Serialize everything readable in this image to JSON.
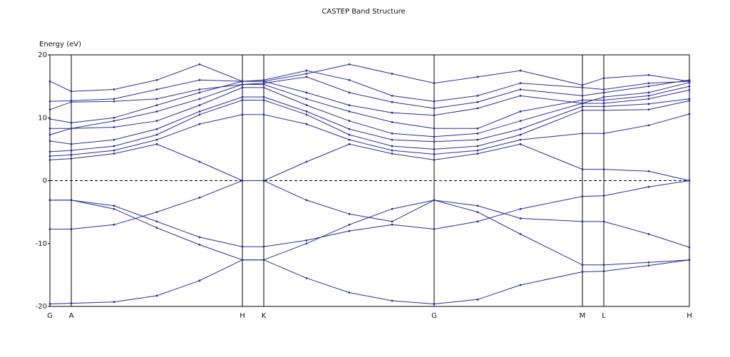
{
  "chart_data": {
    "type": "line",
    "title": "CASTEP Band Structure",
    "y_label": "Energy (eV)",
    "color": "#2b2b9e",
    "fermi_level": 0,
    "x": [
      0,
      30,
      90,
      150,
      210,
      270,
      300,
      360,
      420,
      480,
      539,
      600,
      660,
      747,
      777,
      840,
      897
    ],
    "xlim": [
      0,
      897
    ],
    "xticks": [
      {
        "value": 0,
        "label": "G"
      },
      {
        "value": 30,
        "label": "A"
      },
      {
        "value": 270,
        "label": "H"
      },
      {
        "value": 300,
        "label": "K"
      },
      {
        "value": 539,
        "label": "G"
      },
      {
        "value": 747,
        "label": "M"
      },
      {
        "value": 777,
        "label": "L"
      },
      {
        "value": 897,
        "label": "H"
      }
    ],
    "ylim": [
      -20,
      20
    ],
    "yticks": [
      20,
      10,
      0,
      -10,
      -20
    ],
    "series": [
      {
        "values": [
          -19.6,
          -19.5,
          -19.3,
          -18.3,
          -15.9,
          -12.6,
          -12.6,
          -15.5,
          -17.8,
          -19.1,
          -19.6,
          -18.9,
          -16.6,
          -14.5,
          -14.4,
          -13.5,
          -12.6
        ]
      },
      {
        "values": [
          -3.1,
          -3.1,
          -4.5,
          -7.5,
          -10.2,
          -12.6,
          -12.6,
          -10.0,
          -7.0,
          -4.5,
          -3.1,
          -5.0,
          -8.5,
          -13.4,
          -13.4,
          -13.0,
          -12.6
        ]
      },
      {
        "values": [
          -3.1,
          -3.1,
          -4.0,
          -6.5,
          -9.0,
          -10.5,
          -10.5,
          -9.5,
          -8.0,
          -7.0,
          -7.7,
          -6.5,
          -4.5,
          -2.5,
          -2.4,
          -1.0,
          0
        ]
      },
      {
        "values": [
          -7.7,
          -7.7,
          -7.0,
          -5.0,
          -2.7,
          0,
          0,
          -3.1,
          -5.3,
          -6.5,
          -3.1,
          -4.0,
          -6.0,
          -6.5,
          -6.5,
          -8.5,
          -10.6
        ]
      },
      {
        "values": [
          3.3,
          3.5,
          4.3,
          5.8,
          3.0,
          0,
          0,
          3.0,
          5.8,
          4.3,
          3.3,
          4.3,
          5.8,
          1.8,
          1.8,
          1.5,
          0
        ]
      },
      {
        "values": [
          3.9,
          4.1,
          4.8,
          6.5,
          9.0,
          10.5,
          10.5,
          9.0,
          6.5,
          4.8,
          4.2,
          4.8,
          6.5,
          7.5,
          7.5,
          8.8,
          10.6
        ]
      },
      {
        "values": [
          4.6,
          4.8,
          5.5,
          7.3,
          10.5,
          12.8,
          12.8,
          10.5,
          7.3,
          5.5,
          5.0,
          5.5,
          7.3,
          11.2,
          11.2,
          11.3,
          12.7
        ]
      },
      {
        "values": [
          6.3,
          5.8,
          6.5,
          8.2,
          11.0,
          13.3,
          13.3,
          11.0,
          8.2,
          6.5,
          6.2,
          6.5,
          8.2,
          11.8,
          11.8,
          12.2,
          13.0
        ]
      },
      {
        "values": [
          7.3,
          8.3,
          8.5,
          9.5,
          12.0,
          14.8,
          14.8,
          12.0,
          9.5,
          7.5,
          7.0,
          7.5,
          9.5,
          12.3,
          12.3,
          13.0,
          14.4
        ]
      },
      {
        "values": [
          8.3,
          8.3,
          9.5,
          11.0,
          13.0,
          15.3,
          15.3,
          13.0,
          11.0,
          9.3,
          8.3,
          8.3,
          11.0,
          12.8,
          12.8,
          13.5,
          15.0
        ]
      },
      {
        "values": [
          9.8,
          9.2,
          10.0,
          12.0,
          14.0,
          15.8,
          15.8,
          14.0,
          12.0,
          10.8,
          10.4,
          11.5,
          13.5,
          12.3,
          13.3,
          14.0,
          15.6
        ]
      },
      {
        "values": [
          11.3,
          12.5,
          12.6,
          13.0,
          14.5,
          15.3,
          15.5,
          16.5,
          14.0,
          12.5,
          11.5,
          12.5,
          14.5,
          13.5,
          14.0,
          15.0,
          16.0
        ]
      },
      {
        "values": [
          12.6,
          12.7,
          13.0,
          14.5,
          16.0,
          15.8,
          16.0,
          17.5,
          16.0,
          13.5,
          12.6,
          13.5,
          15.5,
          14.8,
          14.5,
          15.5,
          15.8
        ]
      },
      {
        "values": [
          15.8,
          14.2,
          14.5,
          16.0,
          18.5,
          15.8,
          15.8,
          17.0,
          18.5,
          17.0,
          15.5,
          16.5,
          17.5,
          15.2,
          16.3,
          16.8,
          15.8
        ]
      }
    ]
  }
}
